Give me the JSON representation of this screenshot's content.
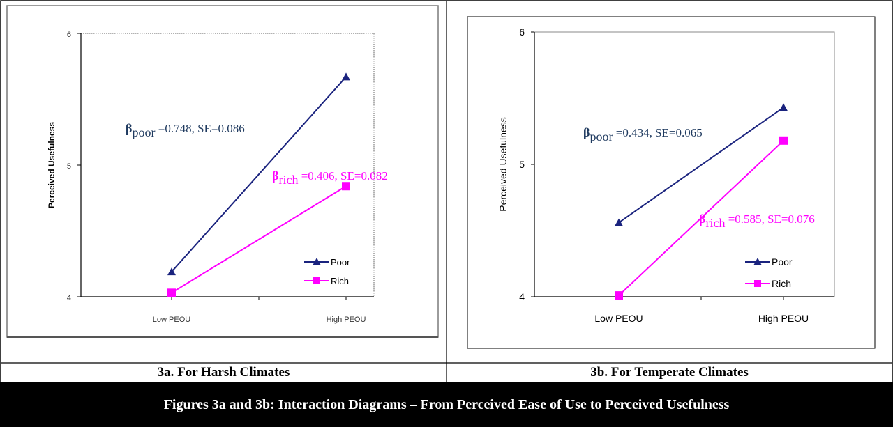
{
  "figure_caption": "Figures 3a and 3b: Interaction Diagrams – From Perceived Ease of Use to Perceived Usefulness",
  "chart_data": [
    {
      "type": "line",
      "caption": "3a. For Harsh Climates",
      "ylabel": "Perceived Usefulness",
      "categories": [
        "Low PEOU",
        "High PEOU"
      ],
      "ylim": [
        4,
        6
      ],
      "yticks": [
        "4",
        "5",
        "6"
      ],
      "legend_position": "bottom-right",
      "series": [
        {
          "name": "Poor",
          "values": [
            4.19,
            5.67
          ],
          "color": "#1a237e",
          "marker": "triangle"
        },
        {
          "name": "Rich",
          "values": [
            4.03,
            4.84
          ],
          "color": "#ff00ff",
          "marker": "square"
        }
      ],
      "annotations": [
        {
          "symbol": "β",
          "sub": "poor",
          "text": " =0.748, SE=0.086",
          "color": "#1f3a5f"
        },
        {
          "symbol": "β",
          "sub": "rich",
          "text": " =0.406, SE=0.082",
          "color": "#ff00ff"
        }
      ]
    },
    {
      "type": "line",
      "caption": "3b. For Temperate Climates",
      "ylabel": "Perceived Usefulness",
      "categories": [
        "Low PEOU",
        "High PEOU"
      ],
      "ylim": [
        4,
        6
      ],
      "yticks": [
        "4",
        "5",
        "6"
      ],
      "legend_position": "bottom-right",
      "series": [
        {
          "name": "Poor",
          "values": [
            4.56,
            5.43
          ],
          "color": "#1a237e",
          "marker": "triangle"
        },
        {
          "name": "Rich",
          "values": [
            4.01,
            5.18
          ],
          "color": "#ff00ff",
          "marker": "square"
        }
      ],
      "annotations": [
        {
          "symbol": "β",
          "sub": "poor",
          "text": " =0.434, SE=0.065",
          "color": "#1f3a5f"
        },
        {
          "symbol": "β",
          "sub": "rich",
          "text": " =0.585, SE=0.076",
          "color": "#ff00ff"
        }
      ]
    }
  ]
}
